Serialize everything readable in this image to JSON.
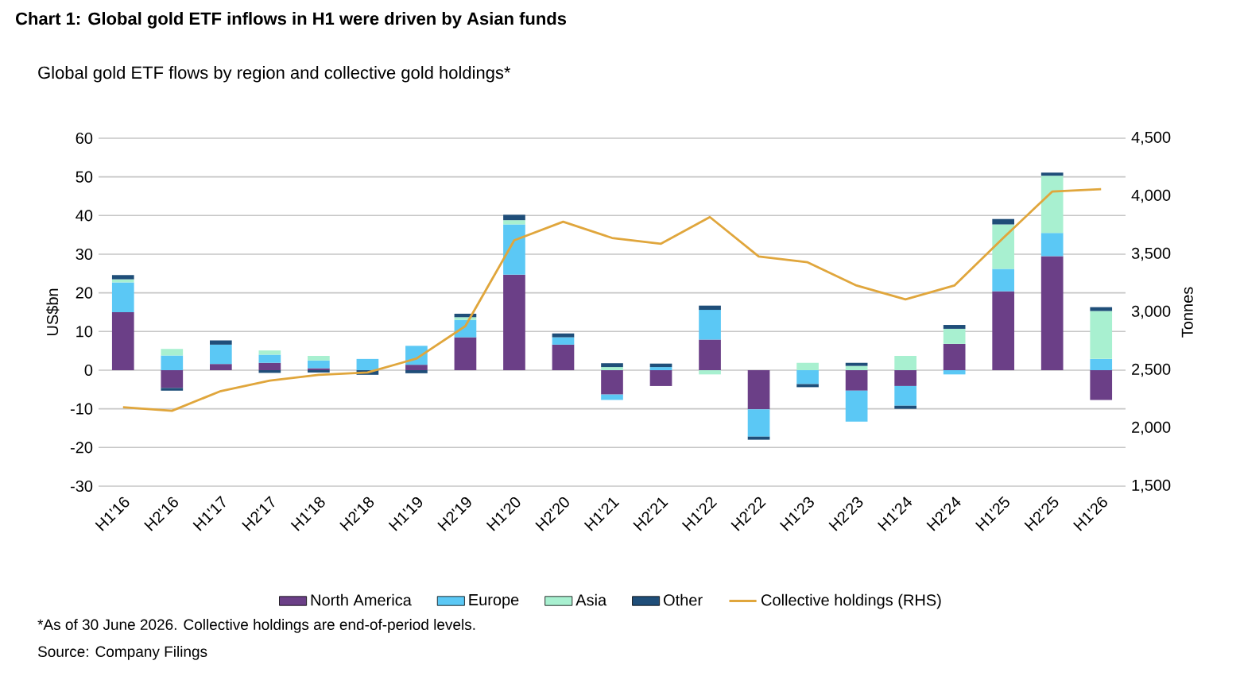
{
  "chart_data": {
    "type": "bar",
    "stacked": true,
    "title": "Chart 1: Global gold ETF inflows in H1 were driven by Asian funds",
    "subtitle": "Global gold ETF flows by region and collective gold holdings*",
    "ylabel": "US$bn",
    "y2label": "Tonnes",
    "categories": [
      "H1'16",
      "H2'16",
      "H1'17",
      "H2'17",
      "H1'18",
      "H2'18",
      "H1'19",
      "H2'19",
      "H1'20",
      "H2'20",
      "H1'21",
      "H2'21",
      "H1'22",
      "H2'22",
      "H1'23",
      "H2'23",
      "H1'24",
      "H2'24",
      "H1'25",
      "H2'25",
      "H1'26"
    ],
    "series": [
      {
        "name": "North America",
        "color": "#6b3f87",
        "values": [
          15.0,
          -4.6,
          1.6,
          1.9,
          0.5,
          0,
          1.4,
          8.5,
          24.7,
          6.6,
          -6.3,
          -4.1,
          7.9,
          -10.1,
          0,
          -5.3,
          -4.1,
          6.8,
          20.4,
          29.5,
          -7.7
        ]
      },
      {
        "name": "Europe",
        "color": "#5bc8f5",
        "values": [
          7.7,
          3.8,
          5.0,
          2.1,
          2.0,
          2.9,
          4.9,
          4.5,
          13.0,
          1.9,
          -1.4,
          0.8,
          7.7,
          -7.1,
          -3.6,
          -8.0,
          -5.1,
          -1.1,
          5.8,
          6.0,
          2.9
        ]
      },
      {
        "name": "Asia",
        "color": "#a8f0d0",
        "values": [
          0.8,
          1.7,
          null,
          1.1,
          1.2,
          0,
          0,
          0.7,
          1.1,
          null,
          0.8,
          null,
          -1.1,
          0,
          1.9,
          1.1,
          3.7,
          3.9,
          11.5,
          14.8,
          12.4
        ]
      },
      {
        "name": "Other",
        "color": "#1f4e79",
        "values": [
          1.1,
          -0.7,
          1.1,
          -0.7,
          -0.6,
          -1.2,
          -0.8,
          0.9,
          1.4,
          1.0,
          1.0,
          0.9,
          1.1,
          -0.8,
          -0.8,
          0.8,
          -0.8,
          1.0,
          1.4,
          0.8,
          1.0
        ]
      },
      {
        "name": "Collective holdings (RHS)",
        "type": "line",
        "axis": "y2",
        "color": "#e0a63c",
        "values": [
          2180,
          2150,
          2320,
          2410,
          2460,
          2480,
          2600,
          2880,
          3620,
          3780,
          3640,
          3590,
          3820,
          3480,
          3430,
          3230,
          3110,
          3230,
          3640,
          4040,
          4060
        ]
      }
    ],
    "ylim": [
      -30,
      60
    ],
    "yticks": [
      -30,
      -20,
      -10,
      0,
      10,
      20,
      30,
      40,
      50,
      60
    ],
    "y2lim": [
      1500,
      4500
    ],
    "y2ticks": [
      {
        "value": 1500,
        "label": "1,500"
      },
      {
        "value": 2000,
        "label": "2,000"
      },
      {
        "value": 2500,
        "label": "2,500"
      },
      {
        "value": 3000,
        "label": "3,000"
      },
      {
        "value": 3500,
        "label": "3,500"
      },
      {
        "value": 4000,
        "label": "4,000"
      },
      {
        "value": 4500,
        "label": "4,500"
      }
    ],
    "grid": "y",
    "legend": "bottom",
    "marker": "none",
    "annotations": [
      "*As of 30 June 2026. Collective holdings are end-of-period levels.",
      "Source: Company Filings"
    ]
  }
}
